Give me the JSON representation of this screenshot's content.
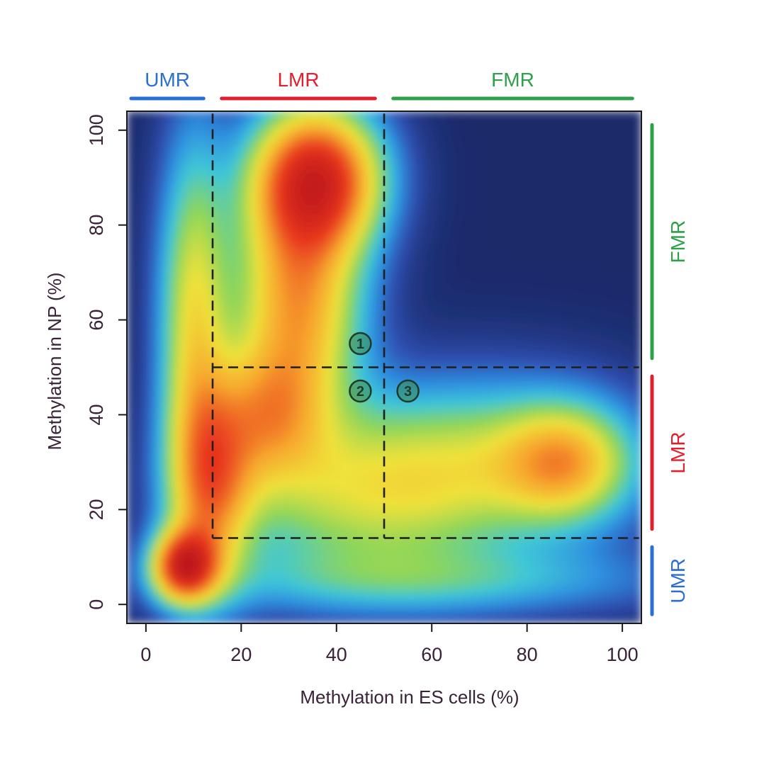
{
  "chart_data": {
    "type": "heatmap",
    "title": "",
    "xlabel": "Methylation in ES cells (%)",
    "ylabel": "Methylation in NP (%)",
    "xlim": [
      -4,
      104
    ],
    "ylim": [
      -4,
      104
    ],
    "x_ticks": [
      0,
      20,
      40,
      60,
      80,
      100
    ],
    "y_ticks": [
      0,
      20,
      40,
      60,
      80,
      100
    ],
    "grid": false,
    "colorscale": [
      "#1b2a6b",
      "#2f4fb0",
      "#2f8fe0",
      "#3fc7d8",
      "#8fd65a",
      "#f0e23a",
      "#f7a62e",
      "#e8361f",
      "#b7141c",
      "#5a1016"
    ],
    "density_peaks": [
      {
        "x": 36,
        "y": 90,
        "sx": 9,
        "sy": 10,
        "weight": 1.0
      },
      {
        "x": 32,
        "y": 65,
        "sx": 9,
        "sy": 18,
        "weight": 0.72
      },
      {
        "x": 8,
        "y": 8,
        "sx": 4.5,
        "sy": 5,
        "weight": 1.0
      },
      {
        "x": 14,
        "y": 25,
        "sx": 6,
        "sy": 14,
        "weight": 0.62
      },
      {
        "x": 10,
        "y": 60,
        "sx": 5,
        "sy": 26,
        "weight": 0.5
      },
      {
        "x": 25,
        "y": 40,
        "sx": 8,
        "sy": 10,
        "weight": 0.45
      },
      {
        "x": 88,
        "y": 30,
        "sx": 9,
        "sy": 8,
        "weight": 0.5
      },
      {
        "x": 70,
        "y": 30,
        "sx": 22,
        "sy": 12,
        "weight": 0.36
      },
      {
        "x": 45,
        "y": 22,
        "sx": 20,
        "sy": 12,
        "weight": 0.34
      },
      {
        "x": 60,
        "y": 5,
        "sx": 35,
        "sy": 5,
        "weight": 0.22
      }
    ],
    "dashed_lines": [
      {
        "x1": 14,
        "y1": 104,
        "x2": 14,
        "y2": 14
      },
      {
        "x1": 50,
        "y1": 104,
        "x2": 50,
        "y2": 14
      },
      {
        "x1": 14,
        "y1": 14,
        "x2": 104,
        "y2": 14
      },
      {
        "x1": 14,
        "y1": 50,
        "x2": 104,
        "y2": 50
      }
    ],
    "annotations": [
      {
        "label": "1",
        "x": 45,
        "y": 55
      },
      {
        "label": "2",
        "x": 45,
        "y": 45
      },
      {
        "label": "3",
        "x": 55,
        "y": 45
      }
    ],
    "segments_top": [
      {
        "label": "UMR",
        "from": -4,
        "to": 13,
        "color": "#2a6fd1"
      },
      {
        "label": "LMR",
        "from": 15,
        "to": 49,
        "color": "#e0202c"
      },
      {
        "label": "FMR",
        "from": 51,
        "to": 103,
        "color": "#2fa04a"
      }
    ],
    "segments_right": [
      {
        "label": "FMR",
        "from": 51,
        "to": 102,
        "color": "#2fa04a"
      },
      {
        "label": "LMR",
        "from": 15,
        "to": 49,
        "color": "#e0202c"
      },
      {
        "label": "UMR",
        "from": -3,
        "to": 13,
        "color": "#2a6fd1"
      }
    ]
  }
}
